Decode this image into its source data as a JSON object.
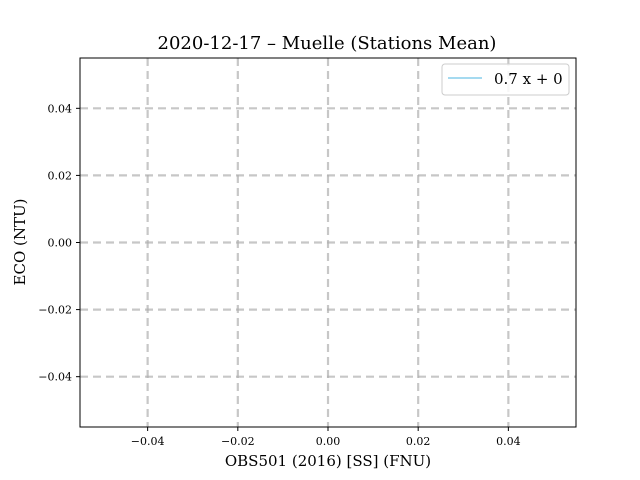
{
  "chart_data": {
    "type": "line",
    "title": "2020-12-17 – Muelle (Stations Mean)",
    "xlabel": "OBS501 (2016) [SS] (FNU)",
    "ylabel": "ECO (NTU)",
    "xlim": [
      -0.055,
      0.055
    ],
    "ylim": [
      -0.055,
      0.055
    ],
    "xticks": [
      -0.04,
      -0.02,
      0.0,
      0.02,
      0.04
    ],
    "yticks": [
      -0.04,
      -0.02,
      0.0,
      0.02,
      0.04
    ],
    "xtick_labels": [
      "−0.04",
      "−0.02",
      "0.00",
      "0.02",
      "0.04"
    ],
    "ytick_labels": [
      "−0.04",
      "−0.02",
      "0.00",
      "0.02",
      "0.04"
    ],
    "grid": true,
    "legend_position": "top-right",
    "series": [
      {
        "name": "0.7 x + 0",
        "color": "#87ceeb",
        "x": [],
        "y": []
      }
    ]
  }
}
